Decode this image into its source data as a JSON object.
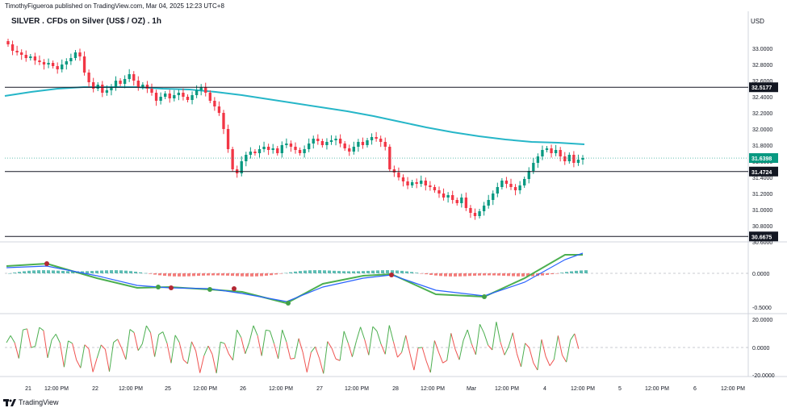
{
  "header": {
    "publisher_line": "TimothyFigueroa published on TradingView.com, Mar 04, 2025 12:23 UTC+8"
  },
  "title": "SILVER . CFDs on Silver (US$ / OZ) . 1h",
  "currency": "USD",
  "footer": {
    "brand": "TradingView"
  },
  "chart_data": [
    {
      "type": "candlestick",
      "title": "SILVER . CFDs on Silver (US$ / OZ) . 1h",
      "ylim": [
        30.6,
        33.3
      ],
      "y_ticks": [
        "33.0000",
        "32.8000",
        "32.6000",
        "32.4000",
        "32.2000",
        "32.0000",
        "31.8000",
        "31.6000",
        "31.4000",
        "31.2000",
        "31.0000",
        "30.8000",
        "30.6000"
      ],
      "x_ticks": [
        "21",
        "12:00 PM",
        "22",
        "12:00 PM",
        "25",
        "12:00 PM",
        "26",
        "12:00 PM",
        "27",
        "12:00 PM",
        "28",
        "12:00 PM",
        "Mar",
        "12:00 PM",
        "4",
        "12:00 PM",
        "5",
        "12:00 PM",
        "6",
        "12:00 PM"
      ],
      "horizontal_levels": [
        {
          "label": "32.5177",
          "value": 32.5177
        },
        {
          "label": "31.4724",
          "value": 31.4724
        },
        {
          "label": "30.6675",
          "value": 30.6675
        }
      ],
      "current_price": {
        "label": "31.6398",
        "value": 31.6398
      },
      "moving_average": [
        32.41,
        32.46,
        32.5,
        32.52,
        32.52,
        32.52,
        32.5,
        32.49,
        32.46,
        32.42,
        32.37,
        32.32,
        32.27,
        32.22,
        32.16,
        32.09,
        32.02,
        31.96,
        31.91,
        31.87,
        31.84,
        31.83,
        31.81
      ],
      "closes": [
        33.05,
        32.97,
        32.95,
        32.92,
        32.88,
        32.9,
        32.85,
        32.83,
        32.8,
        32.82,
        32.78,
        32.74,
        32.8,
        32.84,
        32.88,
        32.95,
        32.9,
        32.7,
        32.58,
        32.5,
        32.55,
        32.45,
        32.48,
        32.52,
        32.6,
        32.56,
        32.62,
        32.68,
        32.6,
        32.52,
        32.55,
        32.5,
        32.45,
        32.35,
        32.4,
        32.44,
        32.38,
        32.42,
        32.45,
        32.4,
        32.36,
        32.42,
        32.48,
        32.52,
        32.45,
        32.35,
        32.28,
        32.2,
        32.0,
        31.75,
        31.5,
        31.45,
        31.6,
        31.68,
        31.72,
        31.7,
        31.75,
        31.78,
        31.74,
        31.76,
        31.7,
        31.8,
        31.82,
        31.78,
        31.74,
        31.7,
        31.75,
        31.82,
        31.88,
        31.85,
        31.8,
        31.84,
        31.86,
        31.88,
        31.82,
        31.76,
        31.72,
        31.78,
        31.84,
        31.8,
        31.86,
        31.9,
        31.88,
        31.84,
        31.78,
        31.5,
        31.46,
        31.4,
        31.35,
        31.3,
        31.34,
        31.32,
        31.36,
        31.3,
        31.28,
        31.24,
        31.2,
        31.15,
        31.18,
        31.12,
        31.08,
        31.15,
        31.02,
        30.96,
        30.92,
        30.98,
        31.05,
        31.12,
        31.2,
        31.28,
        31.36,
        31.32,
        31.28,
        31.24,
        31.3,
        31.38,
        31.48,
        31.58,
        31.66,
        31.74,
        31.76,
        31.7,
        31.74,
        31.66,
        31.6,
        31.68,
        31.58,
        31.62,
        31.64
      ],
      "secondary_axis_labels": [
        "0.0000",
        "-0.5000",
        "20.0000",
        "0.0000",
        "-20.0000"
      ]
    }
  ]
}
